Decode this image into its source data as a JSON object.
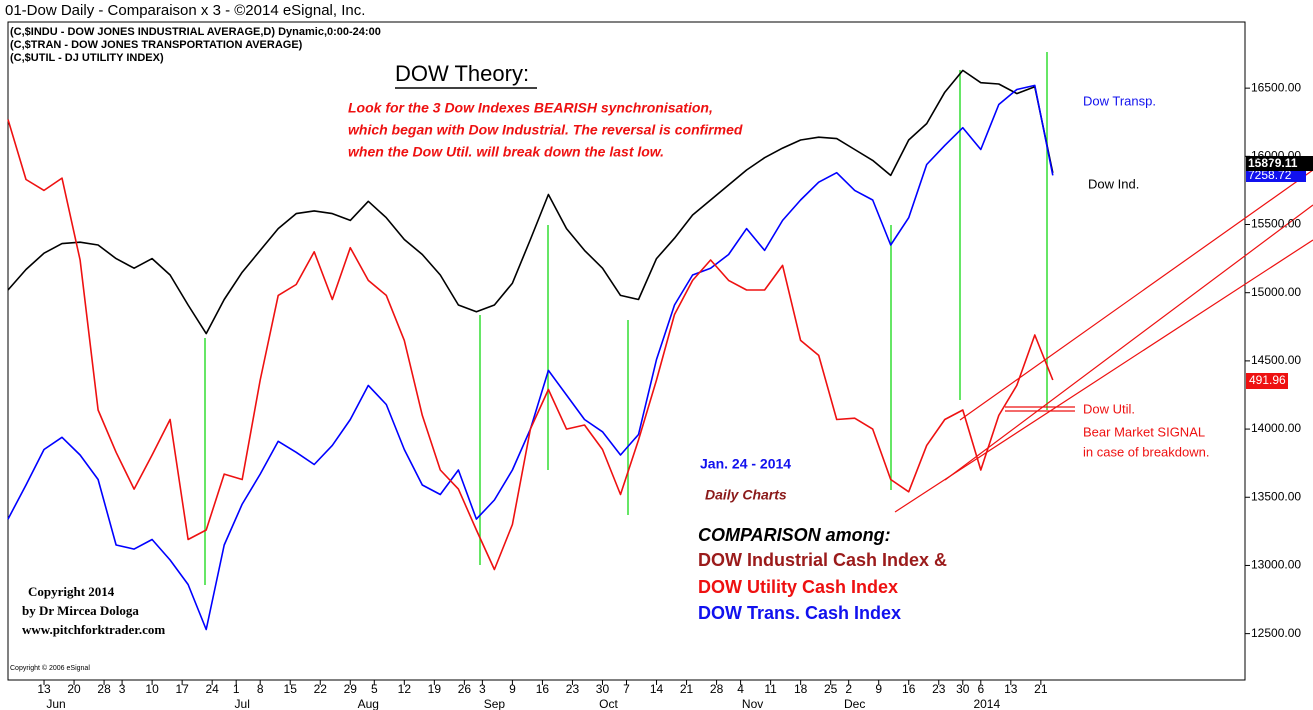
{
  "chart_data": {
    "type": "line",
    "title": "01-Dow Daily - Comparaison x 3 - ©2014 eSignal, Inc.",
    "annotations": [
      "(C,$INDU - DOW JONES INDUSTRIAL AVERAGE,D) Dynamic,0:00-24:00",
      "(C,$TRAN - DOW JONES TRANSPORTATION AVERAGE)",
      "(C,$UTIL - DJ UTILITY INDEX)",
      "DOW Theory:",
      "Look for the 3 Dow Indexes BEARISH synchronisation,",
      "which began with Dow Industrial. The reversal is confirmed",
      "when the Dow Util. will break down the last low.",
      "Bear Market SIGNAL",
      "in case of breakdown.",
      "Jan. 24 - 2014",
      "Daily Charts",
      "COMPARISON among:",
      "DOW Industrial Cash Index &",
      "DOW Utility Cash Index",
      "DOW Trans. Cash Index",
      "Copyright 2014",
      "by Dr Mircea Dologa",
      "www.pitchforktrader.com",
      "Copyright © 2006 eSignal",
      "15879.11",
      "7258.72",
      "491.96"
    ],
    "x": [
      0,
      3,
      6,
      9,
      12,
      15,
      18,
      21,
      24,
      27,
      30,
      33,
      36,
      39,
      42,
      45,
      48,
      51,
      54,
      57,
      60,
      63,
      66,
      69,
      72,
      75,
      78,
      81,
      84,
      87,
      90,
      93,
      96,
      99,
      102,
      105,
      108,
      111,
      114,
      117,
      120,
      123,
      126,
      129,
      132,
      135,
      138,
      141,
      144,
      147,
      150,
      153,
      156,
      159,
      162,
      165,
      168,
      171,
      174
    ],
    "series": [
      {
        "name": "Dow Ind.",
        "color": "#000000",
        "values": [
          15020,
          15170,
          15290,
          15360,
          15370,
          15350,
          15250,
          15180,
          15250,
          15130,
          14910,
          14700,
          14950,
          15150,
          15310,
          15470,
          15580,
          15600,
          15580,
          15530,
          15670,
          15550,
          15390,
          15280,
          15130,
          14910,
          14860,
          14910,
          15070,
          15390,
          15720,
          15470,
          15310,
          15180,
          14980,
          14950,
          15250,
          15400,
          15570,
          15680,
          15790,
          15900,
          15990,
          16060,
          16120,
          16140,
          16130,
          16050,
          15970,
          15860,
          16120,
          16240,
          16470,
          16630,
          16540,
          16530,
          16460,
          16510,
          15879.11
        ]
      },
      {
        "name": "Dow Transp.",
        "color": "#0000ff",
        "values": [
          13340,
          13590,
          13850,
          13940,
          13810,
          13630,
          13150,
          13120,
          13190,
          13040,
          12860,
          12530,
          13150,
          13450,
          13670,
          13910,
          13830,
          13740,
          13880,
          14070,
          14320,
          14180,
          13850,
          13590,
          13520,
          13700,
          13340,
          13480,
          13700,
          14000,
          14430,
          14250,
          14070,
          13980,
          13810,
          13960,
          14510,
          14910,
          15130,
          15180,
          15280,
          15470,
          15310,
          15530,
          15680,
          15810,
          15880,
          15750,
          15680,
          15350,
          15550,
          15940,
          16080,
          16210,
          16050,
          16380,
          16490,
          16520,
          15860
        ]
      },
      {
        "name": "Dow Util.",
        "color": "#ee1111",
        "values": [
          16270,
          15830,
          15750,
          15840,
          15240,
          14140,
          13830,
          13560,
          13810,
          14070,
          13190,
          13260,
          13670,
          13630,
          14360,
          14980,
          15060,
          15300,
          14950,
          15330,
          15090,
          14980,
          14650,
          14100,
          13700,
          13560,
          13260,
          12970,
          13300,
          14000,
          14290,
          14000,
          14030,
          13850,
          13520,
          13920,
          14360,
          14840,
          15090,
          15240,
          15090,
          15020,
          15020,
          15200,
          14650,
          14540,
          14070,
          14080,
          14000,
          13630,
          13540,
          13880,
          14070,
          14140,
          13700,
          14100,
          14320,
          14690,
          14360
        ]
      }
    ],
    "xlim": [
      0,
      206
    ],
    "xticks": [
      {
        "value": 6,
        "label": "13"
      },
      {
        "value": 11,
        "label": "20"
      },
      {
        "value": 16,
        "label": "28"
      },
      {
        "value": 19,
        "label": "3"
      },
      {
        "value": 24,
        "label": "10"
      },
      {
        "value": 29,
        "label": "17"
      },
      {
        "value": 34,
        "label": "24"
      },
      {
        "value": 38,
        "label": "1"
      },
      {
        "value": 42,
        "label": "8"
      },
      {
        "value": 47,
        "label": "15"
      },
      {
        "value": 52,
        "label": "22"
      },
      {
        "value": 57,
        "label": "29"
      },
      {
        "value": 61,
        "label": "5"
      },
      {
        "value": 66,
        "label": "12"
      },
      {
        "value": 71,
        "label": "19"
      },
      {
        "value": 76,
        "label": "26"
      },
      {
        "value": 79,
        "label": "3"
      },
      {
        "value": 84,
        "label": "9"
      },
      {
        "value": 89,
        "label": "16"
      },
      {
        "value": 94,
        "label": "23"
      },
      {
        "value": 99,
        "label": "30"
      },
      {
        "value": 103,
        "label": "7"
      },
      {
        "value": 108,
        "label": "14"
      },
      {
        "value": 113,
        "label": "21"
      },
      {
        "value": 118,
        "label": "28"
      },
      {
        "value": 122,
        "label": "4"
      },
      {
        "value": 127,
        "label": "11"
      },
      {
        "value": 132,
        "label": "18"
      },
      {
        "value": 137,
        "label": "25"
      },
      {
        "value": 140,
        "label": "2"
      },
      {
        "value": 145,
        "label": "9"
      },
      {
        "value": 150,
        "label": "16"
      },
      {
        "value": 155,
        "label": "23"
      },
      {
        "value": 159,
        "label": "30"
      },
      {
        "value": 162,
        "label": "6"
      },
      {
        "value": 167,
        "label": "13"
      },
      {
        "value": 172,
        "label": "21"
      }
    ],
    "month_labels": [
      {
        "value": 8,
        "label": "Jun"
      },
      {
        "value": 39,
        "label": "Jul"
      },
      {
        "value": 60,
        "label": "Aug"
      },
      {
        "value": 81,
        "label": "Sep"
      },
      {
        "value": 100,
        "label": "Oct"
      },
      {
        "value": 124,
        "label": "Nov"
      },
      {
        "value": 141,
        "label": "Dec"
      },
      {
        "value": 163,
        "label": "2014"
      }
    ],
    "ylim": [
      12160,
      16985
    ],
    "yticks": [
      {
        "value": 12500,
        "label": "12500.00"
      },
      {
        "value": 13000,
        "label": "13000.00"
      },
      {
        "value": 13500,
        "label": "13500.00"
      },
      {
        "value": 14000,
        "label": "14000.00"
      },
      {
        "value": 14500,
        "label": "14500.00"
      },
      {
        "value": 15000,
        "label": "15000.00"
      },
      {
        "value": 15500,
        "label": "15500.00"
      },
      {
        "value": 16000,
        "label": "16000.00"
      },
      {
        "value": 16500,
        "label": "16500.00"
      }
    ],
    "grid": false
  }
}
